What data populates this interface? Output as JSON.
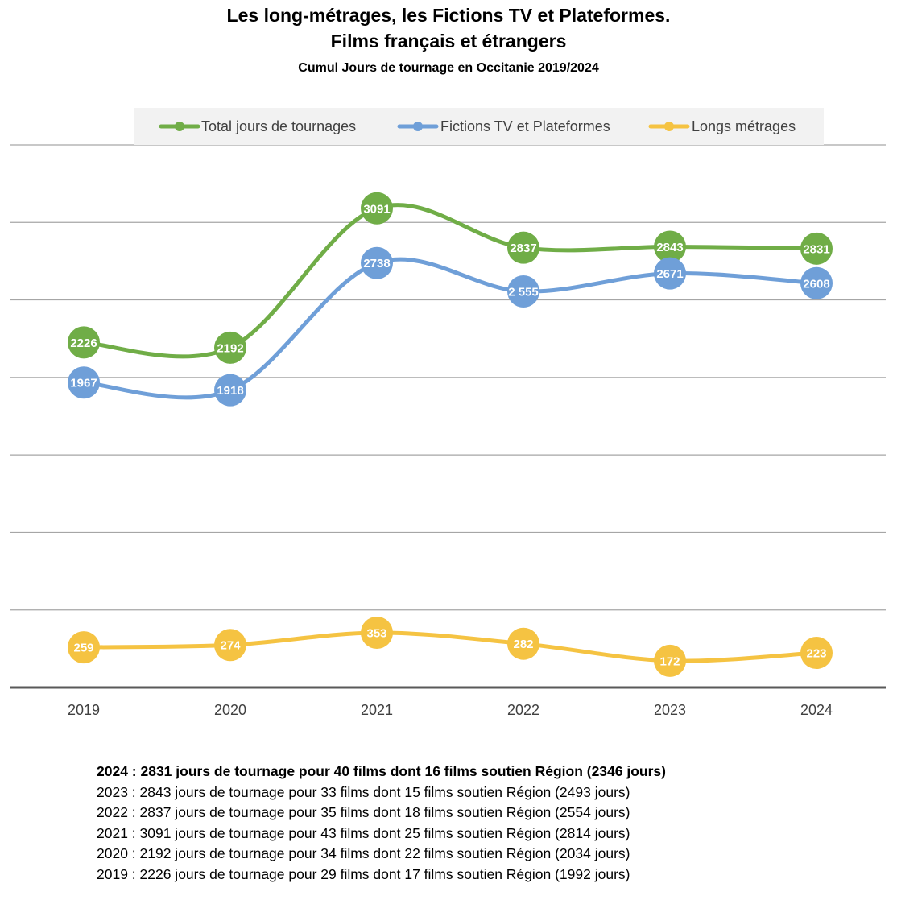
{
  "header": {
    "title_line1": "Les long-métrages, les Fictions TV et Plateformes.",
    "title_line2": "Films français et étrangers",
    "subtitle": "Cumul Jours de tournage en Occitanie 2019/2024"
  },
  "chart_data": {
    "type": "line",
    "x": [
      "2019",
      "2020",
      "2021",
      "2022",
      "2023",
      "2024"
    ],
    "series": [
      {
        "name": "Total jours de tournages",
        "color": "#70AD47",
        "values": [
          2226,
          2192,
          3091,
          2837,
          2843,
          2831
        ],
        "labels": [
          "2226",
          "2192",
          "3091",
          "2837",
          "2843",
          "2831"
        ]
      },
      {
        "name": "Fictions TV et Plateformes",
        "color": "#6F9FD8",
        "values": [
          1967,
          1918,
          2738,
          2555,
          2671,
          2608
        ],
        "labels": [
          "1967",
          "1918",
          "2738",
          "2 555",
          "2671",
          "2608"
        ]
      },
      {
        "name": "Longs métrages",
        "color": "#F5C342",
        "values": [
          259,
          274,
          353,
          282,
          172,
          223
        ],
        "labels": [
          "259",
          "274",
          "353",
          "282",
          "172",
          "223"
        ]
      }
    ],
    "grid": true,
    "legend_position": "top",
    "smooth": true
  },
  "notes": [
    {
      "text": "2024 : 2831 jours de tournage pour 40 films dont 16 films soutien Région (2346 jours)",
      "bold": true
    },
    {
      "text": "2023 : 2843 jours de tournage pour 33 films dont 15 films soutien Région (2493 jours)",
      "bold": false
    },
    {
      "text": "2022 : 2837 jours de tournage pour 35 films dont 18 films soutien Région (2554 jours)",
      "bold": false
    },
    {
      "text": "2021 : 3091 jours de tournage pour 43 films dont 25 films soutien Région (2814 jours)",
      "bold": false
    },
    {
      "text": "2020 : 2192 jours de tournage pour 34 films dont 22 films soutien Région (2034 jours)",
      "bold": false
    },
    {
      "text": "2019 : 2226 jours de tournage pour 29 films dont 17 films soutien Région (1992 jours)",
      "bold": false
    }
  ]
}
